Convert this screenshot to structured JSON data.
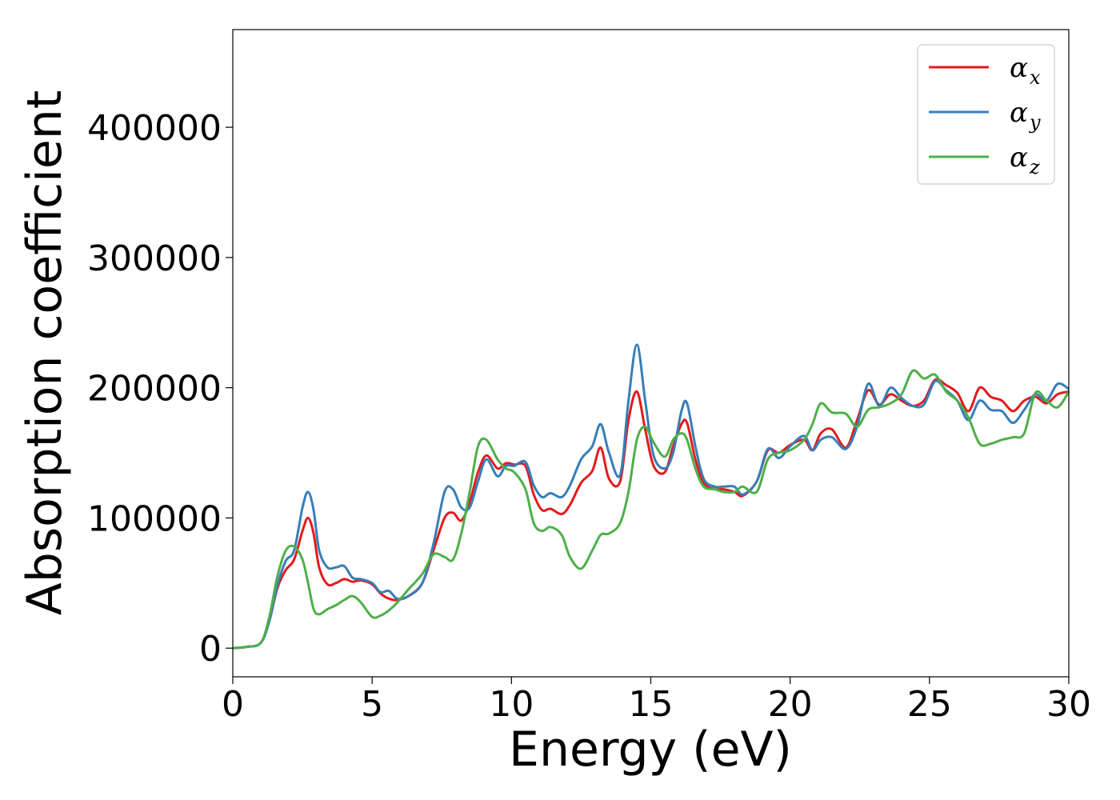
{
  "chart_data": {
    "type": "line",
    "title": "",
    "xlabel": "Energy (eV)",
    "ylabel": "Absorption coefficient",
    "xlim": [
      0,
      30
    ],
    "ylim": [
      -22000,
      475000
    ],
    "xticks": [
      0,
      5,
      10,
      15,
      20,
      25,
      30
    ],
    "xtick_labels": [
      "0",
      "5",
      "10",
      "15",
      "20",
      "25",
      "30"
    ],
    "yticks": [
      0,
      100000,
      200000,
      300000,
      400000
    ],
    "ytick_labels": [
      "0",
      "100000",
      "200000",
      "300000",
      "400000"
    ],
    "grid": false,
    "legend_position": "top-right",
    "series": [
      {
        "name": "α",
        "subscript": "x",
        "color": "#e41a1c",
        "x": [
          0,
          0.5,
          1.0,
          1.3,
          1.6,
          1.9,
          2.2,
          2.5,
          2.7,
          2.9,
          3.1,
          3.4,
          3.7,
          4.0,
          4.3,
          4.6,
          5.0,
          5.3,
          5.6,
          5.9,
          6.3,
          6.8,
          7.2,
          7.6,
          7.9,
          8.2,
          8.5,
          8.8,
          9.1,
          9.5,
          9.8,
          10.1,
          10.5,
          10.8,
          11.1,
          11.4,
          11.8,
          12.1,
          12.5,
          12.9,
          13.2,
          13.5,
          13.9,
          14.2,
          14.5,
          14.8,
          15.1,
          15.5,
          15.8,
          16.1,
          16.3,
          16.6,
          16.9,
          17.3,
          17.6,
          18.0,
          18.3,
          18.8,
          19.2,
          19.6,
          20.0,
          20.5,
          20.8,
          21.1,
          21.5,
          22.0,
          22.4,
          22.8,
          23.2,
          23.6,
          24.0,
          24.4,
          24.8,
          25.2,
          25.6,
          26.0,
          26.4,
          26.8,
          27.2,
          27.6,
          28.0,
          28.4,
          28.8,
          29.2,
          29.6,
          30.0
        ],
        "values": [
          0,
          1000,
          4000,
          20000,
          46000,
          60000,
          68000,
          90000,
          100000,
          88000,
          62000,
          49000,
          50000,
          53000,
          51000,
          52000,
          49000,
          42000,
          38000,
          37000,
          40000,
          50000,
          75000,
          100000,
          104000,
          98000,
          112000,
          135000,
          148000,
          138000,
          142000,
          141000,
          140000,
          118000,
          106000,
          107000,
          103000,
          110000,
          127000,
          136000,
          154000,
          130000,
          128000,
          175000,
          197000,
          168000,
          140000,
          135000,
          155000,
          172000,
          173000,
          145000,
          127000,
          122000,
          122000,
          120000,
          117000,
          128000,
          152000,
          150000,
          156000,
          160000,
          152000,
          165000,
          168000,
          154000,
          175000,
          198000,
          187000,
          195000,
          190000,
          186000,
          190000,
          206000,
          202000,
          196000,
          182000,
          200000,
          193000,
          190000,
          182000,
          190000,
          193000,
          188000,
          195000,
          197000
        ]
      },
      {
        "name": "α",
        "subscript": "y",
        "color": "#377eb8",
        "x": [
          0,
          0.5,
          1.0,
          1.3,
          1.6,
          1.9,
          2.2,
          2.5,
          2.7,
          2.9,
          3.1,
          3.4,
          3.7,
          4.0,
          4.3,
          4.6,
          5.0,
          5.3,
          5.6,
          5.9,
          6.3,
          6.8,
          7.2,
          7.6,
          7.9,
          8.2,
          8.5,
          8.8,
          9.1,
          9.5,
          9.8,
          10.1,
          10.5,
          10.8,
          11.1,
          11.4,
          11.8,
          12.1,
          12.5,
          12.9,
          13.2,
          13.5,
          13.9,
          14.2,
          14.5,
          14.8,
          15.1,
          15.5,
          15.8,
          16.1,
          16.3,
          16.6,
          16.9,
          17.3,
          17.6,
          18.0,
          18.3,
          18.8,
          19.2,
          19.6,
          20.0,
          20.5,
          20.8,
          21.1,
          21.5,
          22.0,
          22.4,
          22.8,
          23.2,
          23.6,
          24.0,
          24.4,
          24.8,
          25.2,
          25.6,
          26.0,
          26.4,
          26.8,
          27.2,
          27.6,
          28.0,
          28.4,
          28.8,
          29.2,
          29.6,
          30.0
        ],
        "values": [
          0,
          1000,
          4000,
          20000,
          48000,
          67000,
          75000,
          108000,
          120000,
          106000,
          75000,
          62000,
          62000,
          63000,
          54000,
          53000,
          50000,
          43000,
          44000,
          38000,
          40000,
          50000,
          80000,
          120000,
          122000,
          108000,
          108000,
          128000,
          145000,
          132000,
          140000,
          140000,
          143000,
          125000,
          116000,
          119000,
          116000,
          125000,
          145000,
          155000,
          172000,
          150000,
          133000,
          190000,
          233000,
          190000,
          148000,
          138000,
          150000,
          182000,
          188000,
          155000,
          130000,
          124000,
          124000,
          124000,
          118000,
          128000,
          153000,
          146000,
          155000,
          163000,
          152000,
          160000,
          162000,
          153000,
          170000,
          203000,
          186000,
          200000,
          192000,
          186000,
          187000,
          205000,
          198000,
          190000,
          175000,
          190000,
          183000,
          182000,
          173000,
          183000,
          195000,
          190000,
          203000,
          199000
        ]
      },
      {
        "name": "α",
        "subscript": "z",
        "color": "#4daf4a",
        "x": [
          0,
          0.5,
          1.0,
          1.3,
          1.6,
          1.9,
          2.2,
          2.5,
          2.7,
          2.9,
          3.1,
          3.4,
          3.7,
          4.0,
          4.3,
          4.6,
          5.0,
          5.3,
          5.6,
          5.9,
          6.3,
          6.8,
          7.2,
          7.6,
          7.9,
          8.2,
          8.5,
          8.8,
          9.1,
          9.5,
          9.8,
          10.1,
          10.5,
          10.8,
          11.1,
          11.4,
          11.8,
          12.1,
          12.5,
          12.9,
          13.2,
          13.5,
          13.9,
          14.2,
          14.5,
          14.8,
          15.1,
          15.5,
          15.8,
          16.1,
          16.3,
          16.6,
          16.9,
          17.3,
          17.6,
          18.0,
          18.3,
          18.8,
          19.2,
          19.6,
          20.0,
          20.5,
          20.8,
          21.1,
          21.5,
          22.0,
          22.4,
          22.8,
          23.2,
          23.6,
          24.0,
          24.4,
          24.8,
          25.2,
          25.6,
          26.0,
          26.4,
          26.8,
          27.2,
          27.6,
          28.0,
          28.4,
          28.8,
          29.2,
          29.6,
          30.0
        ],
        "values": [
          0,
          1000,
          4000,
          23000,
          55000,
          75000,
          78000,
          68000,
          50000,
          30000,
          26000,
          30000,
          33000,
          37000,
          40000,
          35000,
          24000,
          25000,
          29000,
          35000,
          45000,
          57000,
          72000,
          70000,
          68000,
          88000,
          120000,
          155000,
          160000,
          145000,
          138000,
          135000,
          122000,
          96000,
          90000,
          93000,
          87000,
          70000,
          61000,
          75000,
          87000,
          88000,
          96000,
          120000,
          160000,
          170000,
          158000,
          147000,
          160000,
          165000,
          160000,
          138000,
          124000,
          122000,
          120000,
          120000,
          124000,
          120000,
          145000,
          150000,
          152000,
          160000,
          172000,
          188000,
          181000,
          180000,
          170000,
          183000,
          185000,
          188000,
          195000,
          213000,
          207000,
          210000,
          197000,
          190000,
          177000,
          157000,
          157000,
          160000,
          162000,
          165000,
          196000,
          190000,
          185000,
          197000
        ]
      }
    ]
  }
}
